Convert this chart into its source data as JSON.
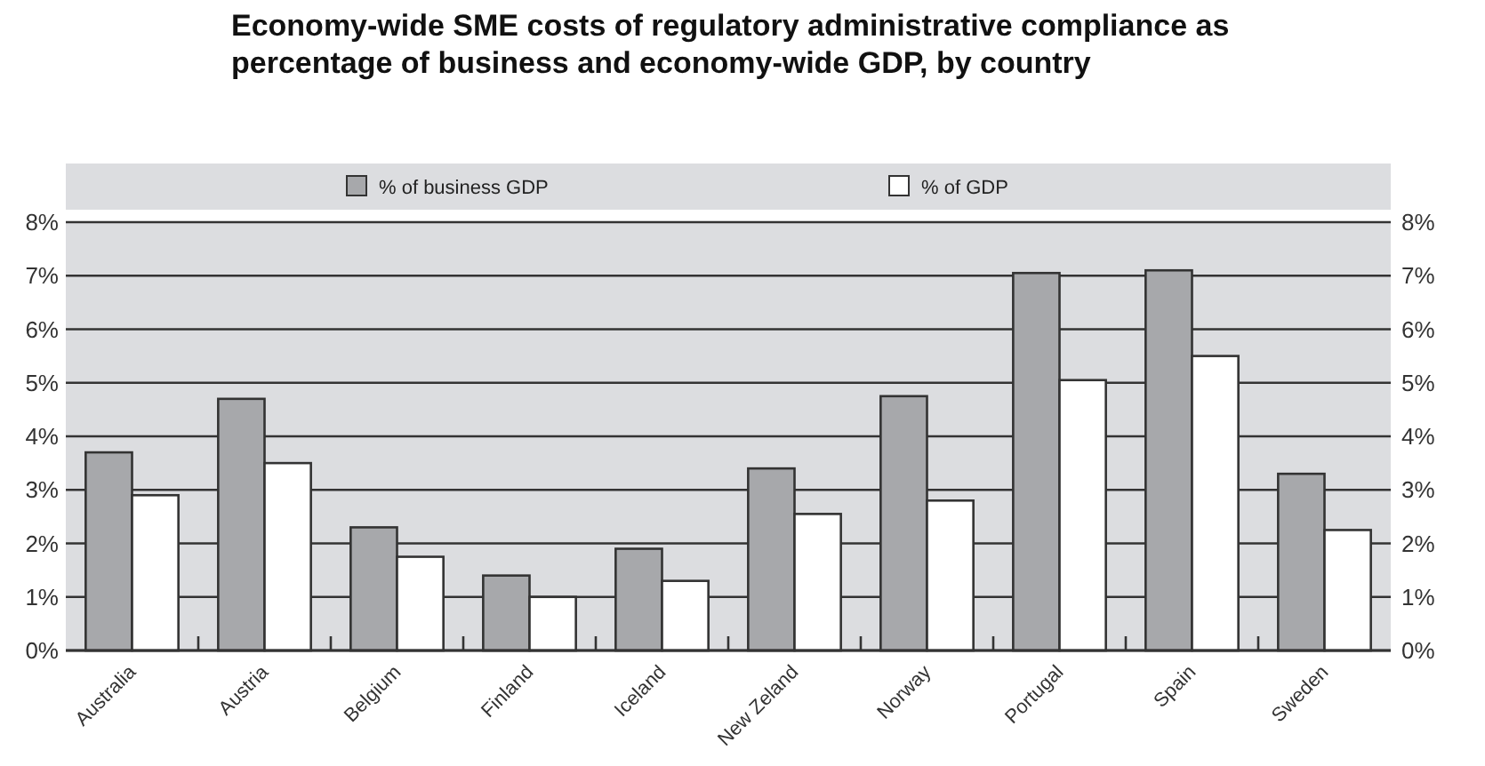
{
  "chart_data": {
    "type": "bar",
    "title": "Economy-wide SME costs of regulatory administrative compliance as percentage of business and economy-wide GDP, by country",
    "categories": [
      "Australia",
      "Austria",
      "Belgium",
      "Finland",
      "Iceland",
      "New Zeland",
      "Norway",
      "Portugal",
      "Spain",
      "Sweden"
    ],
    "series": [
      {
        "name": "% of business GDP",
        "color": "#a7a8ab",
        "values": [
          3.7,
          4.7,
          2.3,
          1.4,
          1.9,
          3.4,
          4.75,
          7.05,
          7.1,
          3.3
        ]
      },
      {
        "name": "% of GDP",
        "color": "#ffffff",
        "values": [
          2.9,
          3.5,
          1.75,
          1.0,
          1.3,
          2.55,
          2.8,
          5.05,
          5.5,
          2.25
        ]
      }
    ],
    "ylim": [
      0,
      8
    ],
    "yticks": [
      {
        "value": 0,
        "label": "0%"
      },
      {
        "value": 1,
        "label": "1%"
      },
      {
        "value": 2,
        "label": "2%"
      },
      {
        "value": 3,
        "label": "3%"
      },
      {
        "value": 4,
        "label": "4%"
      },
      {
        "value": 5,
        "label": "5%"
      },
      {
        "value": 6,
        "label": "6%"
      },
      {
        "value": 7,
        "label": "7%"
      },
      {
        "value": 8,
        "label": "8%"
      }
    ],
    "y2lim": [
      0,
      8
    ],
    "y2ticks": [
      {
        "value": 0,
        "label": "0%"
      },
      {
        "value": 1,
        "label": "1%"
      },
      {
        "value": 2,
        "label": "2%"
      },
      {
        "value": 3,
        "label": "3%"
      },
      {
        "value": 4,
        "label": "4%"
      },
      {
        "value": 5,
        "label": "5%"
      },
      {
        "value": 6,
        "label": "6%"
      },
      {
        "value": 7,
        "label": "7%"
      },
      {
        "value": 8,
        "label": "8%"
      }
    ],
    "grid": "y",
    "legend": "top"
  }
}
